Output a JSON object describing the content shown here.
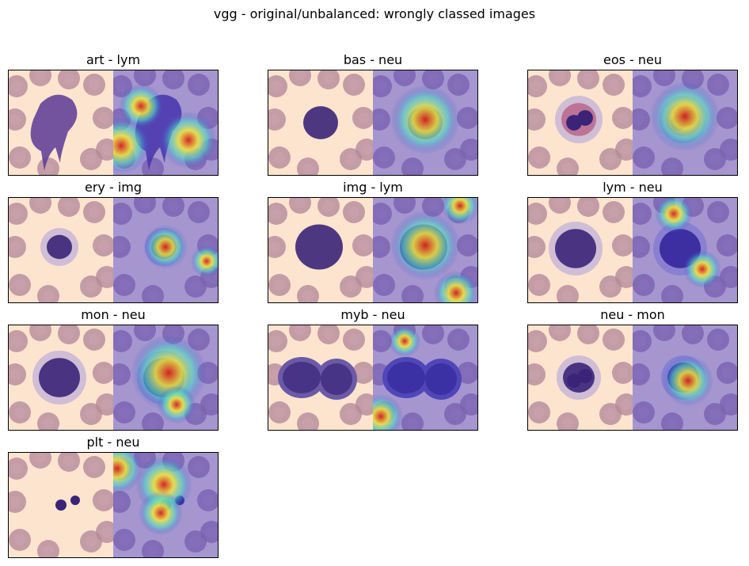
{
  "figure": {
    "suptitle": "vgg - original/unbalanced: wrongly classed images"
  },
  "panels": [
    {
      "label": "art - lym"
    },
    {
      "label": "bas - neu"
    },
    {
      "label": "eos - neu"
    },
    {
      "label": "ery - img"
    },
    {
      "label": "img - lym"
    },
    {
      "label": "lym - neu"
    },
    {
      "label": "mon - neu"
    },
    {
      "label": "myb - neu"
    },
    {
      "label": "neu - mon"
    },
    {
      "label": "plt - neu"
    }
  ],
  "colors": {
    "background_stain": "#fde4cf",
    "rbc": "#b48a9a",
    "nucleus": "#3b2378",
    "heatmap_low": "#2a2bd0",
    "heatmap_high": "#e8302a"
  }
}
